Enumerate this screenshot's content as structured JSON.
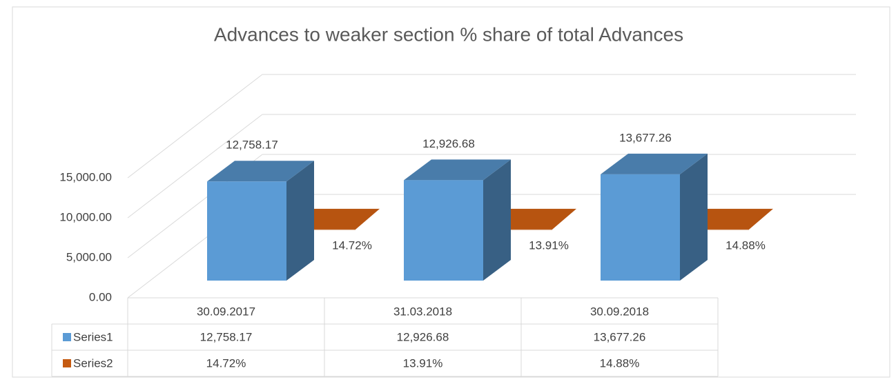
{
  "chart_data": {
    "type": "bar3d",
    "title": "Advances to weaker section %  share of total Advances",
    "categories": [
      "30.09.2017",
      "31.03.2018",
      "30.09.2018"
    ],
    "series": [
      {
        "name": "Series1",
        "color": "#5b9bd5",
        "values": [
          12758.17,
          12926.68,
          13677.26
        ],
        "value_labels": [
          "12,758.17",
          "12,926.68",
          "13,677.26"
        ]
      },
      {
        "name": "Series2",
        "color": "#c55a11",
        "values": [
          14.72,
          13.91,
          14.88
        ],
        "value_labels": [
          "14.72%",
          "13.91%",
          "14.88%"
        ]
      }
    ],
    "ylim": [
      0,
      15000
    ],
    "yticks": [
      {
        "value": 0,
        "label": "0.00"
      },
      {
        "value": 5000,
        "label": "5,000.00"
      },
      {
        "value": 10000,
        "label": "10,000.00"
      },
      {
        "value": 15000,
        "label": "15,000.00"
      }
    ],
    "grid": true,
    "data_table": true
  }
}
